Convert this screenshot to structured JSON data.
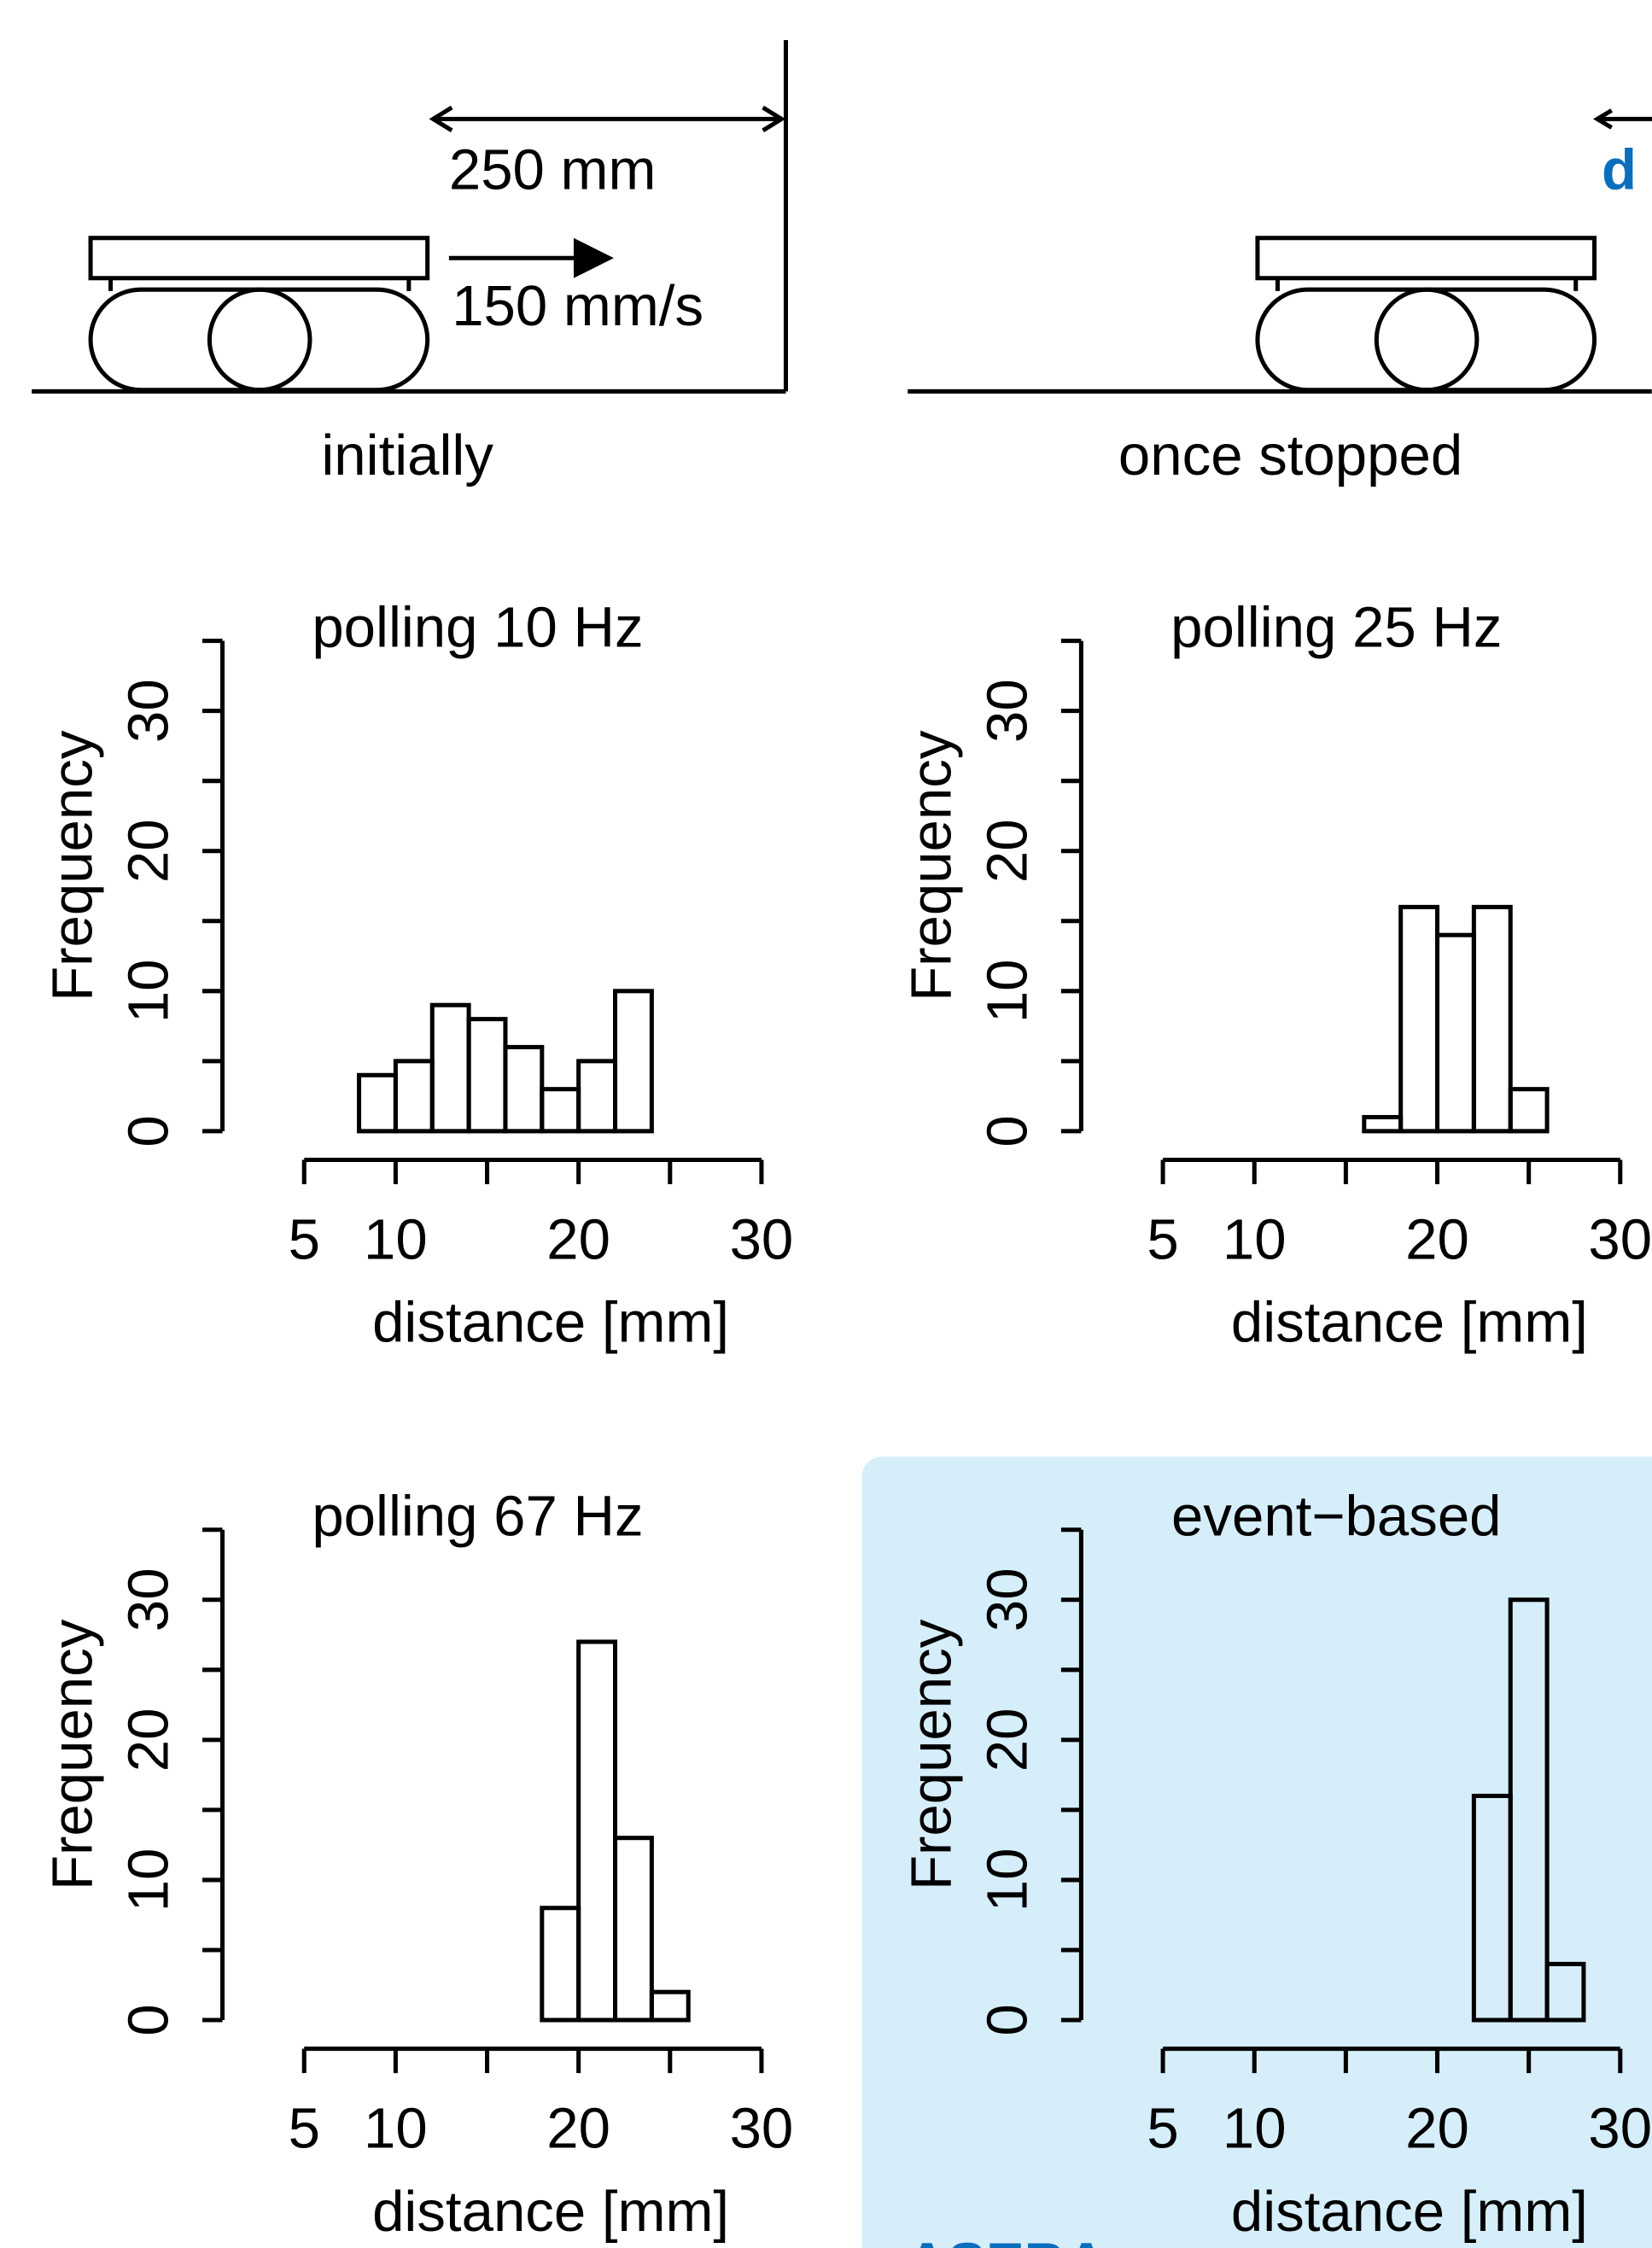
{
  "diagram": {
    "distance": "250 mm",
    "speed": "150 mm/s",
    "initial_caption": "initially",
    "stopped_caption": "once stopped",
    "d_label": "d",
    "panel_label": "ASEBA"
  },
  "chart_data": [
    {
      "type": "histogram",
      "title": "polling 10 Hz",
      "x_label": "distance [mm]",
      "y_label": "Frequency",
      "bins": [
        2,
        4,
        6,
        8,
        10,
        12,
        14,
        16,
        18,
        20,
        22,
        24,
        26,
        28,
        30,
        32
      ],
      "values": [
        0,
        0,
        0,
        4,
        5,
        9,
        8,
        6,
        3,
        5,
        10,
        0,
        0,
        0,
        0
      ],
      "xlim": [
        5,
        30
      ],
      "xticks": [
        5,
        10,
        20,
        30
      ],
      "xminor_ticks": [
        15,
        25
      ],
      "ylim": [
        0,
        35
      ],
      "yticks": [
        0,
        10,
        20,
        30
      ],
      "yminor_ticks": [
        5,
        15,
        25,
        35
      ]
    },
    {
      "type": "histogram",
      "title": "polling 25 Hz",
      "x_label": "distance [mm]",
      "y_label": "Frequency",
      "bins": [
        2,
        4,
        6,
        8,
        10,
        12,
        14,
        16,
        18,
        20,
        22,
        24,
        26,
        28,
        30,
        32
      ],
      "values": [
        0,
        0,
        0,
        0,
        0,
        0,
        0,
        1,
        16,
        14,
        16,
        3,
        0,
        0,
        0
      ],
      "xlim": [
        5,
        30
      ],
      "xticks": [
        5,
        10,
        20,
        30
      ],
      "xminor_ticks": [
        15,
        25
      ],
      "ylim": [
        0,
        35
      ],
      "yticks": [
        0,
        10,
        20,
        30
      ],
      "yminor_ticks": [
        5,
        15,
        25,
        35
      ]
    },
    {
      "type": "histogram",
      "title": "polling 67 Hz",
      "x_label": "distance [mm]",
      "y_label": "Frequency",
      "bins": [
        2,
        4,
        6,
        8,
        10,
        12,
        14,
        16,
        18,
        20,
        22,
        24,
        26,
        28,
        30
      ],
      "values": [
        0,
        0,
        0,
        0,
        0,
        0,
        0,
        0,
        8,
        27,
        13,
        2,
        0,
        0
      ],
      "xlim": [
        5,
        30
      ],
      "xticks": [
        5,
        10,
        20,
        30
      ],
      "xminor_ticks": [
        15,
        25
      ],
      "ylim": [
        0,
        35
      ],
      "yticks": [
        0,
        10,
        20,
        30
      ],
      "yminor_ticks": [
        5,
        15,
        25,
        35
      ]
    },
    {
      "type": "histogram",
      "title": "event−based",
      "x_label": "distance [mm]",
      "y_label": "Frequency",
      "bins": [
        2,
        4,
        6,
        8,
        10,
        12,
        14,
        16,
        18,
        20,
        22,
        24,
        26,
        28,
        30,
        32
      ],
      "values": [
        0,
        0,
        0,
        0,
        0,
        0,
        0,
        0,
        0,
        0,
        16,
        30,
        4,
        0,
        0
      ],
      "xlim": [
        5,
        30
      ],
      "xticks": [
        5,
        10,
        20,
        30
      ],
      "xminor_ticks": [
        15,
        25
      ],
      "ylim": [
        0,
        35
      ],
      "yticks": [
        0,
        10,
        20,
        30
      ],
      "yminor_ticks": [
        5,
        15,
        25,
        35
      ]
    }
  ]
}
